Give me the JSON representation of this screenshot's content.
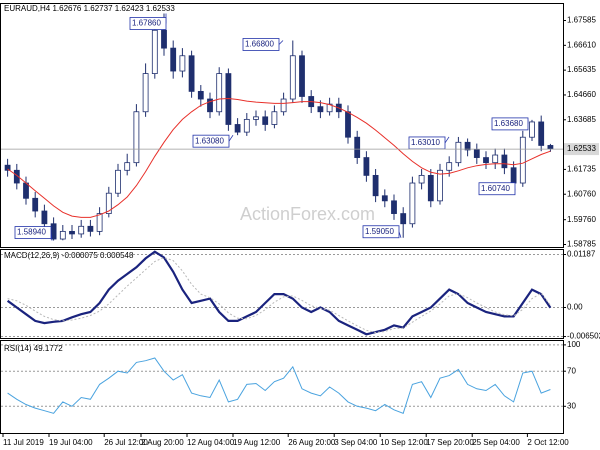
{
  "chart_data": [
    {
      "type": "candlestick",
      "title": "EURAUD,H4  1.62676 1.62737 1.62423 1.62533",
      "watermark": "ActionForex.com",
      "color": "#1f2f6e",
      "open": [
        1.619,
        1.617,
        1.612,
        1.606,
        1.601,
        1.596,
        1.59,
        1.593,
        1.592,
        1.595,
        1.593,
        1.6,
        1.608,
        1.617,
        1.62,
        1.64,
        1.655,
        1.672,
        1.665,
        1.656,
        1.662,
        1.648,
        1.645,
        1.64,
        1.655,
        1.635,
        1.632,
        1.637,
        1.638,
        1.635,
        1.64,
        1.645,
        1.662,
        1.646,
        1.642,
        1.64,
        1.643,
        1.64,
        1.63,
        1.622,
        1.615,
        1.607,
        1.605,
        1.6,
        1.596,
        1.612,
        1.615,
        1.605,
        1.617,
        1.62,
        1.628,
        1.625,
        1.622,
        1.62,
        1.623,
        1.618,
        1.612,
        1.63,
        1.636,
        1.62676
      ],
      "high": [
        1.6215,
        1.6195,
        1.6145,
        1.6085,
        1.6035,
        1.5985,
        1.5955,
        1.5955,
        1.5975,
        1.5975,
        1.6025,
        1.6105,
        1.6195,
        1.6235,
        1.643,
        1.659,
        1.675,
        1.6786,
        1.668,
        1.665,
        1.664,
        1.6505,
        1.6475,
        1.6575,
        1.657,
        1.6375,
        1.6395,
        1.6405,
        1.6405,
        1.6425,
        1.6475,
        1.668,
        1.664,
        1.6485,
        1.6445,
        1.6455,
        1.6455,
        1.6425,
        1.6325,
        1.6245,
        1.6175,
        1.6095,
        1.6075,
        1.6025,
        1.6145,
        1.6175,
        1.6175,
        1.6195,
        1.6225,
        1.6301,
        1.6295,
        1.6275,
        1.6245,
        1.6255,
        1.6255,
        1.6205,
        1.6325,
        1.6368,
        1.6385,
        1.62737
      ],
      "low": [
        1.6145,
        1.6095,
        1.6035,
        1.5985,
        1.5935,
        1.5894,
        1.5895,
        1.59,
        1.5905,
        1.591,
        1.5915,
        1.5985,
        1.6065,
        1.615,
        1.6185,
        1.638,
        1.653,
        1.662,
        1.653,
        1.6535,
        1.6455,
        1.642,
        1.6375,
        1.6385,
        1.6325,
        1.6308,
        1.6305,
        1.6345,
        1.6325,
        1.6335,
        1.6385,
        1.6435,
        1.6435,
        1.6395,
        1.6375,
        1.6385,
        1.6375,
        1.6275,
        1.6195,
        1.6125,
        1.6045,
        1.6025,
        1.5975,
        1.5905,
        1.5945,
        1.6095,
        1.6025,
        1.6035,
        1.6145,
        1.6185,
        1.6225,
        1.6195,
        1.6175,
        1.6175,
        1.6155,
        1.6074,
        1.6105,
        1.6285,
        1.6245,
        1.62423
      ],
      "close": [
        1.617,
        1.612,
        1.606,
        1.601,
        1.596,
        1.59,
        1.593,
        1.592,
        1.595,
        1.593,
        1.6,
        1.608,
        1.617,
        1.62,
        1.64,
        1.655,
        1.672,
        1.665,
        1.656,
        1.662,
        1.648,
        1.645,
        1.64,
        1.655,
        1.635,
        1.632,
        1.637,
        1.638,
        1.635,
        1.64,
        1.645,
        1.662,
        1.646,
        1.642,
        1.64,
        1.643,
        1.64,
        1.63,
        1.622,
        1.615,
        1.607,
        1.605,
        1.6,
        1.596,
        1.612,
        1.615,
        1.605,
        1.617,
        1.62,
        1.628,
        1.625,
        1.622,
        1.62,
        1.623,
        1.618,
        1.612,
        1.63,
        1.636,
        1.62676,
        1.62533
      ],
      "overlay": {
        "color": "#e8302a",
        "values": [
          1.6175,
          1.615,
          1.612,
          1.609,
          1.606,
          1.603,
          1.6005,
          1.599,
          1.5985,
          1.5985,
          1.5995,
          1.601,
          1.6035,
          1.6065,
          1.611,
          1.6165,
          1.6225,
          1.628,
          1.633,
          1.637,
          1.64,
          1.6425,
          1.644,
          1.645,
          1.6452,
          1.6448,
          1.6442,
          1.6438,
          1.6435,
          1.6433,
          1.6433,
          1.6436,
          1.644,
          1.644,
          1.6436,
          1.6428,
          1.6415,
          1.6398,
          1.6378,
          1.6355,
          1.6328,
          1.6298,
          1.6268,
          1.6235,
          1.6205,
          1.618,
          1.6162,
          1.6155,
          1.6158,
          1.6168,
          1.618,
          1.6188,
          1.6193,
          1.6196,
          1.6196,
          1.6192,
          1.6198,
          1.6215,
          1.6232,
          1.6245
        ]
      },
      "annotations": [
        {
          "value": 1.6786,
          "label": "1.67860"
        },
        {
          "value": 1.668,
          "label": "1.66800"
        },
        {
          "value": 1.6308,
          "label": "1.63080"
        },
        {
          "value": 1.6301,
          "label": "1.63010"
        },
        {
          "value": 1.6368,
          "label": "1.63680"
        },
        {
          "value": 1.6074,
          "label": "1.60740"
        },
        {
          "value": 1.5894,
          "label": "1.58940"
        },
        {
          "value": 1.5905,
          "label": "1.59050"
        }
      ],
      "last": {
        "value": 1.62533,
        "label": "1.62533"
      },
      "ylim": [
        1.58667,
        1.68253
      ],
      "yticks": [
        1.67585,
        {
          "value": 1.6661,
          "label": "1.66610"
        },
        1.65635,
        {
          "value": 1.6466,
          "label": "1.64660"
        },
        1.63685,
        1.61735,
        {
          "value": 1.6076,
          "label": "1.60760"
        },
        {
          "value": 1.5976,
          "label": "1.59760"
        },
        1.58785
      ],
      "xticks": [
        {
          "value": 0,
          "label": "11 Jul 2019"
        },
        {
          "value": 5,
          "label": "19 Jul 04:00"
        },
        {
          "value": 11,
          "label": "26 Jul 12:00"
        },
        {
          "value": 15,
          "label": "2 Aug 20:00"
        },
        {
          "value": 20,
          "label": "12 Aug 04:00"
        },
        {
          "value": 25,
          "label": "19 Aug 12:00"
        },
        {
          "value": 31,
          "label": "26 Aug 20:00"
        },
        {
          "value": 36,
          "label": "3 Sep 04:00"
        },
        {
          "value": 41,
          "label": "10 Sep 12:00"
        },
        {
          "value": 46,
          "label": "17 Sep 20:00"
        },
        {
          "value": 51,
          "label": "25 Sep 04:00"
        },
        {
          "value": 57,
          "label": "2 Oct 12:00"
        }
      ]
    },
    {
      "type": "line",
      "title": "MACD(12,26,9) -0.000075 0.000548",
      "series": [
        {
          "color": "#1a237e",
          "width": 2.2,
          "values": [
            0.0015,
            0.0,
            -0.0015,
            -0.003,
            -0.0035,
            -0.0032,
            -0.003,
            -0.0022,
            -0.0015,
            -0.001,
            0.001,
            0.004,
            0.006,
            0.0075,
            0.009,
            0.011,
            0.0125,
            0.0112,
            0.008,
            0.004,
            0.001,
            0.0015,
            0.002,
            -0.001,
            -0.003,
            -0.003,
            -0.002,
            -0.001,
            0.001,
            0.003,
            0.003,
            0.002,
            0.0,
            -0.001,
            0.0,
            -0.001,
            -0.003,
            -0.004,
            -0.005,
            -0.006,
            -0.0055,
            -0.005,
            -0.004,
            -0.0045,
            -0.002,
            -0.001,
            0.0,
            0.002,
            0.004,
            0.003,
            0.001,
            0.0,
            -0.001,
            -0.0015,
            -0.002,
            -0.002,
            0.001,
            0.004,
            0.003,
            -7.5e-05
          ]
        },
        {
          "color": "#b8b8b8",
          "width": 1,
          "dashed": true,
          "values": [
            0.002,
            0.0015,
            0.0005,
            -0.0008,
            -0.002,
            -0.0027,
            -0.003,
            -0.0028,
            -0.0024,
            -0.0018,
            -0.0008,
            0.0008,
            0.0028,
            0.0048,
            0.0066,
            0.0085,
            0.0103,
            0.0112,
            0.0105,
            0.0082,
            0.0052,
            0.003,
            0.0022,
            0.0008,
            -0.0012,
            -0.0024,
            -0.0025,
            -0.0018,
            -0.0005,
            0.0012,
            0.0024,
            0.0026,
            0.0016,
            0.0004,
            -0.0002,
            -0.0006,
            -0.0018,
            -0.003,
            -0.0041,
            -0.0051,
            -0.0056,
            -0.0054,
            -0.0047,
            -0.0046,
            -0.0033,
            -0.002,
            -0.0008,
            0.0008,
            0.0026,
            0.0031,
            0.0022,
            0.001,
            0.0,
            -0.001,
            -0.0016,
            -0.0019,
            -0.0004,
            0.002,
            0.0032,
            0.000548
          ]
        }
      ],
      "ylim": [
        -0.00694,
        0.01299
      ],
      "yticks": [
        0.01187,
        {
          "value": 0,
          "label": "0.00"
        },
        -0.006502
      ],
      "grid": true
    },
    {
      "type": "line",
      "title": "RSI(14) 49.1772",
      "series": [
        {
          "color": "#4aa3df",
          "width": 1,
          "values": [
            45,
            38,
            32,
            28,
            25,
            22,
            35,
            30,
            40,
            38,
            55,
            62,
            70,
            68,
            80,
            82,
            85,
            70,
            60,
            66,
            45,
            42,
            40,
            60,
            35,
            38,
            55,
            56,
            48,
            58,
            62,
            75,
            50,
            45,
            42,
            52,
            45,
            35,
            30,
            28,
            25,
            32,
            26,
            22,
            55,
            58,
            40,
            62,
            65,
            72,
            55,
            50,
            48,
            55,
            42,
            35,
            68,
            70,
            45,
            49.1772
          ]
        }
      ],
      "ylim": [
        -1,
        105
      ],
      "yticks": [
        100,
        70,
        30
      ],
      "grid": true
    }
  ]
}
